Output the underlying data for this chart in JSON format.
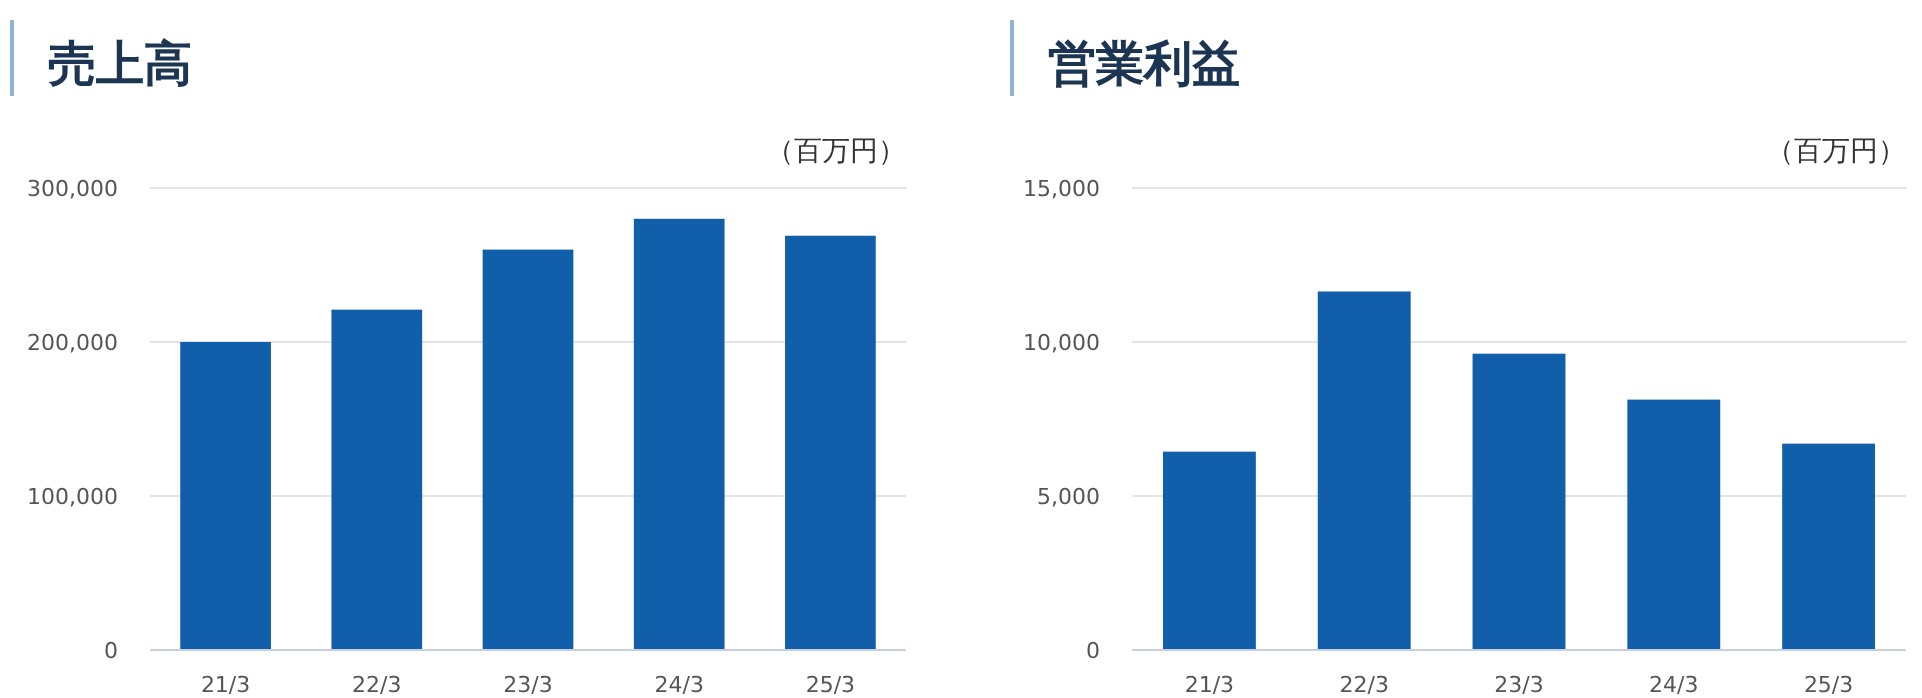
{
  "chart_data": [
    {
      "type": "bar",
      "title": "売上高",
      "ylabel": "（百万円）",
      "categories": [
        "21/3",
        "22/3",
        "23/3",
        "24/3",
        "25/3"
      ],
      "values": [
        200000,
        221000,
        260000,
        280000,
        269000
      ],
      "color": "#115fab",
      "ylim": [
        0,
        300000
      ],
      "yticks": [
        {
          "value": 0,
          "label": "0"
        },
        {
          "value": 100000,
          "label": "100,000"
        },
        {
          "value": 200000,
          "label": "200,000"
        },
        {
          "value": 300000,
          "label": "300,000"
        }
      ],
      "grid": "y"
    },
    {
      "type": "bar",
      "title": "営業利益",
      "ylabel": "（百万円）",
      "categories": [
        "21/3",
        "22/3",
        "23/3",
        "24/3",
        "25/3"
      ],
      "values": [
        6440,
        11640,
        9620,
        8130,
        6700
      ],
      "color": "#115fab",
      "ylim": [
        0,
        15000
      ],
      "yticks": [
        {
          "value": 0,
          "label": "0"
        },
        {
          "value": 5000,
          "label": "5,000"
        },
        {
          "value": 10000,
          "label": "10,000"
        },
        {
          "value": 15000,
          "label": "15,000"
        }
      ],
      "grid": "y"
    }
  ]
}
